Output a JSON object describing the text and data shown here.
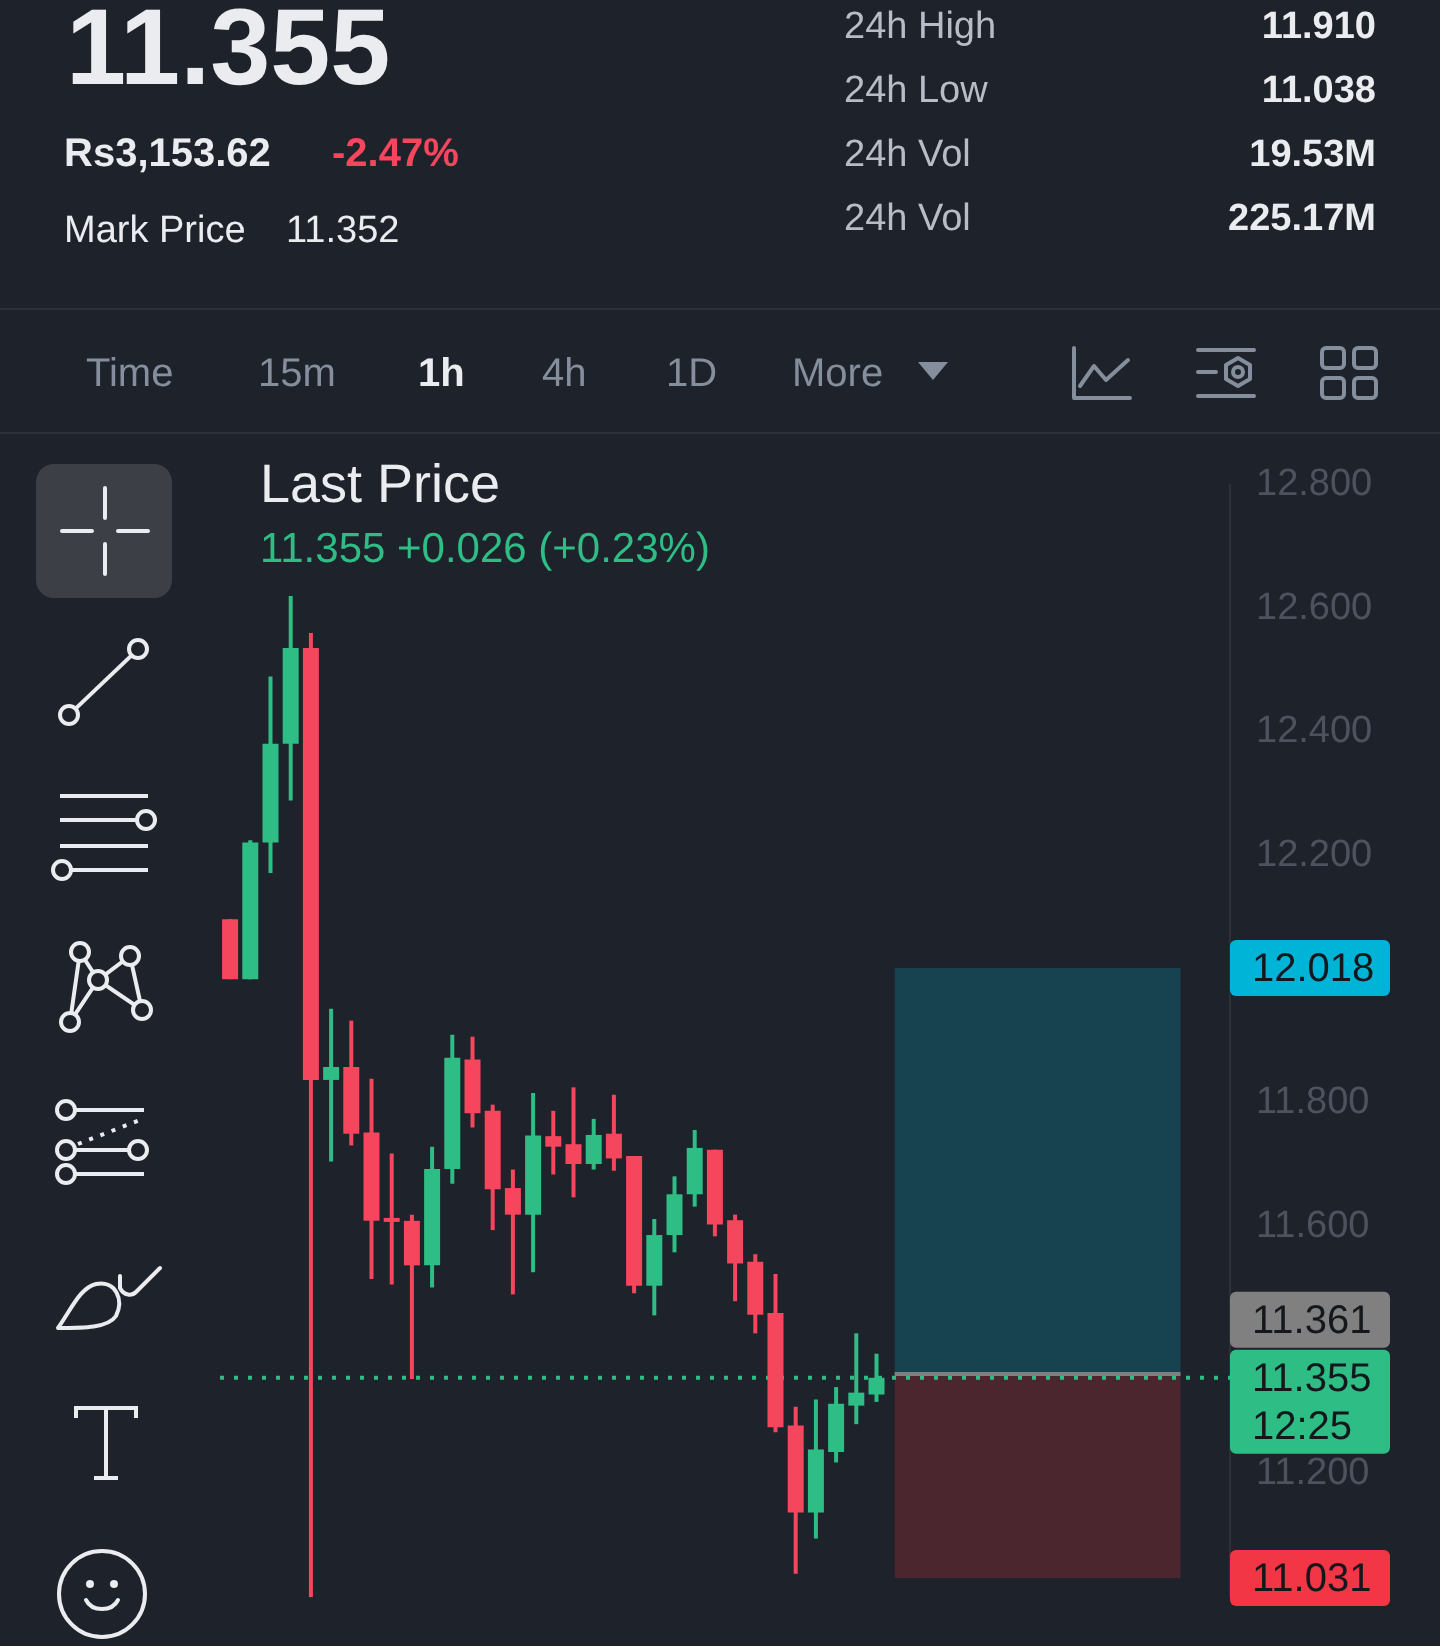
{
  "chart_data": {
    "type": "candlestick",
    "title": "Last Price",
    "subtitle": "11.355 +0.026 (+0.23%)",
    "annotations": [
      "11.355",
      "Rs3,153.62",
      "-2.47%",
      "Mark Price",
      "11.352",
      "24h High",
      "11.910",
      "24h Low",
      "11.038",
      "24h Vol",
      "19.53M",
      "24h Vol",
      "225.17M",
      "Time",
      "15m",
      "1h",
      "4h",
      "1D",
      "More"
    ],
    "categories": [
      null,
      null,
      null,
      null,
      null,
      null,
      null,
      null,
      null,
      null,
      null,
      null,
      null,
      null,
      null,
      null,
      null,
      null,
      null,
      null,
      null,
      null,
      null,
      null,
      null,
      null,
      null,
      null,
      null,
      null,
      null,
      null,
      null,
      null,
      null,
      null,
      null,
      null,
      null,
      null,
      null,
      null,
      null,
      null,
      null,
      null,
      null,
      null,
      null,
      null
    ],
    "ohlc": [
      [
        12.097,
        12.097,
        12.0,
        12.0
      ],
      [
        12.0,
        12.225,
        12.0,
        12.221
      ],
      [
        12.221,
        12.49,
        12.172,
        12.381
      ],
      [
        12.381,
        12.62,
        12.289,
        12.536
      ],
      [
        12.536,
        12.56,
        11.0,
        11.837
      ],
      [
        11.837,
        11.952,
        11.705,
        11.858
      ],
      [
        11.858,
        11.933,
        11.731,
        11.75
      ],
      [
        11.752,
        11.839,
        11.515,
        11.609
      ],
      [
        11.612,
        11.718,
        11.506,
        11.609
      ],
      [
        11.609,
        11.619,
        11.353,
        11.537
      ],
      [
        11.537,
        11.729,
        11.501,
        11.693
      ],
      [
        11.693,
        11.91,
        11.669,
        11.873
      ],
      [
        11.87,
        11.907,
        11.76,
        11.783
      ],
      [
        11.787,
        11.797,
        11.594,
        11.66
      ],
      [
        11.662,
        11.692,
        11.49,
        11.619
      ],
      [
        11.619,
        11.816,
        11.526,
        11.747
      ],
      [
        11.746,
        11.787,
        11.684,
        11.729
      ],
      [
        11.733,
        11.825,
        11.647,
        11.701
      ],
      [
        11.701,
        11.774,
        11.692,
        11.748
      ],
      [
        11.75,
        11.813,
        11.69,
        11.71
      ],
      [
        11.714,
        11.714,
        11.492,
        11.504
      ],
      [
        11.504,
        11.612,
        11.456,
        11.586
      ],
      [
        11.586,
        11.681,
        11.558,
        11.652
      ],
      [
        11.652,
        11.756,
        11.632,
        11.727
      ],
      [
        11.724,
        11.724,
        11.584,
        11.603
      ],
      [
        11.61,
        11.619,
        11.479,
        11.54
      ],
      [
        11.543,
        11.555,
        11.427,
        11.457
      ],
      [
        11.46,
        11.523,
        11.267,
        11.275
      ],
      [
        11.278,
        11.308,
        11.038,
        11.137
      ],
      [
        11.137,
        11.32,
        11.095,
        11.239
      ],
      [
        11.235,
        11.34,
        11.218,
        11.313
      ],
      [
        11.31,
        11.427,
        11.28,
        11.331
      ],
      [
        11.328,
        11.394,
        11.316,
        11.355
      ],
      null,
      null,
      null,
      null,
      null,
      null,
      null,
      null,
      null,
      null,
      null,
      null,
      null,
      null,
      null,
      null,
      null
    ],
    "colors": [
      "#f6465d",
      "#2ebd85",
      "#2ebd85",
      "#2ebd85",
      "#f6465d",
      "#2ebd85",
      "#f6465d",
      "#f6465d",
      "#f6465d",
      "#f6465d",
      "#2ebd85",
      "#2ebd85",
      "#f6465d",
      "#f6465d",
      "#f6465d",
      "#2ebd85",
      "#f6465d",
      "#f6465d",
      "#2ebd85",
      "#f6465d",
      "#f6465d",
      "#2ebd85",
      "#2ebd85",
      "#2ebd85",
      "#f6465d",
      "#f6465d",
      "#f6465d",
      "#f6465d",
      "#f6465d",
      "#2ebd85",
      "#2ebd85",
      "#2ebd85",
      "#2ebd85",
      null,
      null,
      null,
      null,
      null,
      null,
      null,
      null,
      null,
      null,
      null,
      null,
      null,
      null,
      null,
      null,
      null
    ],
    "ylim": [
      11.0,
      12.8
    ],
    "yticks": [
      {
        "value": 11.2,
        "label": "11.200"
      },
      {
        "value": 11.6,
        "label": "11.600"
      },
      {
        "value": 11.8,
        "label": "11.800"
      },
      {
        "value": 12.2,
        "label": "12.200"
      },
      {
        "value": 12.4,
        "label": "12.400"
      },
      {
        "value": 12.6,
        "label": "12.600"
      },
      {
        "value": 12.8,
        "label": "12.800"
      }
    ],
    "tick_labels": "y",
    "grid": false,
    "legend": false,
    "bands": [
      {
        "axis": "y",
        "from": 11.361,
        "to": 12.018,
        "label": "12.018",
        "color": "#00b4d8"
      },
      {
        "axis": "y",
        "from": 11.031,
        "to": 11.361,
        "label": "11.031",
        "color": "#f23645"
      }
    ],
    "ref_lines": [
      {
        "axis": "y",
        "value": 11.361,
        "label": "11.361",
        "color": "#808080"
      },
      {
        "axis": "y",
        "value": 11.355,
        "label": "11.355\n12:25",
        "color": "#2ebd85",
        "line_style": "dotted"
      }
    ]
  }
}
